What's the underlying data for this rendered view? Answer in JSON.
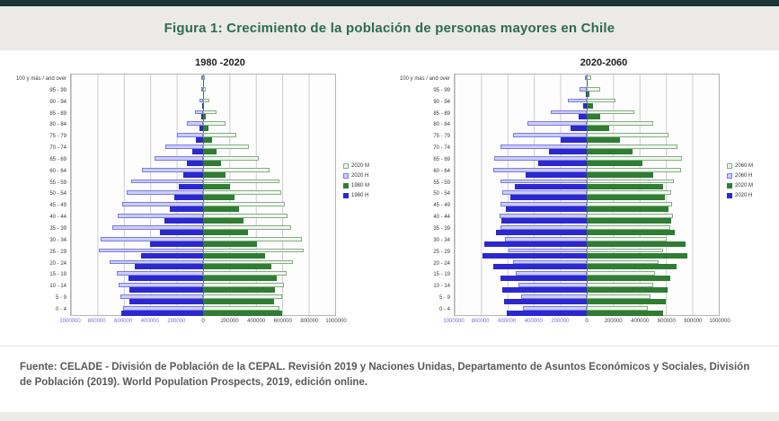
{
  "page": {
    "title": "Figura 1: Crecimiento de la población de personas mayores en Chile",
    "source": "Fuente: CELADE - División de Población de la CEPAL. Revisión 2019 y Naciones Unidas, Departamento de Asuntos Económicos y Sociales, División de Población (2019). World Population Prospects, 2019, edición online."
  },
  "colors": {
    "title_green": "#2e6b50",
    "top_strip": "#1d3537",
    "solid_blue": "#2b28cf",
    "solid_green": "#2e7d32",
    "outline_lavender_fill": "#ccccff",
    "outline_lavender_border": "#7b7bdf",
    "outline_lightgreen_fill": "#f0f6ee",
    "outline_lightgreen_border": "#85ad85",
    "negative_tick_color": "#6f6fd8",
    "background": "#efeeec"
  },
  "chart_data": [
    {
      "type": "bar",
      "subtype": "population-pyramid",
      "title": "1980 -2020",
      "xlabel": "",
      "ylabel": "",
      "xlim_abs": 1000000,
      "grid": true,
      "legend_position": "right",
      "age_groups": [
        "100 y más / and over",
        "95 - 99",
        "90 - 94",
        "85 - 89",
        "80 - 84",
        "75 - 79",
        "70 - 74",
        "65 - 69",
        "60 - 64",
        "55 - 59",
        "50 - 54",
        "45 - 49",
        "40 - 44",
        "35 - 39",
        "30 - 34",
        "25 - 29",
        "20 - 24",
        "15 - 19",
        "10 - 14",
        "5 - 9",
        "0 - 4"
      ],
      "x_tick_labels": [
        "1000000",
        "800000",
        "600000",
        "400000",
        "200000",
        "0",
        "200000",
        "400000",
        "600000",
        "800000",
        "1000000"
      ],
      "legend": [
        {
          "label": "2020 M",
          "style": "outline-lightgreen"
        },
        {
          "label": "2020 H",
          "style": "outline-lavender"
        },
        {
          "label": "1980 M",
          "style": "solid-green"
        },
        {
          "label": "1980 H",
          "style": "solid-blue"
        }
      ],
      "series": [
        {
          "name": "2020 H",
          "side": "left",
          "style": "outline-lavender",
          "values": [
            2000,
            8000,
            25000,
            60000,
            120000,
            195000,
            285000,
            370000,
            460000,
            545000,
            575000,
            610000,
            645000,
            685000,
            775000,
            790000,
            705000,
            655000,
            640000,
            625000,
            605000
          ]
        },
        {
          "name": "2020 M",
          "side": "right",
          "style": "outline-lightgreen",
          "values": [
            6000,
            18000,
            50000,
            100000,
            170000,
            255000,
            345000,
            425000,
            505000,
            575000,
            595000,
            620000,
            640000,
            665000,
            745000,
            760000,
            680000,
            630000,
            615000,
            600000,
            580000
          ]
        },
        {
          "name": "1980 H",
          "side": "left",
          "style": "solid-blue",
          "values": [
            1000,
            2000,
            5000,
            12000,
            30000,
            55000,
            85000,
            120000,
            150000,
            185000,
            220000,
            255000,
            295000,
            330000,
            400000,
            470000,
            520000,
            565000,
            560000,
            555000,
            620000
          ]
        },
        {
          "name": "1980 M",
          "side": "right",
          "style": "solid-green",
          "values": [
            1000,
            3000,
            8000,
            18000,
            40000,
            70000,
            100000,
            135000,
            170000,
            205000,
            240000,
            270000,
            305000,
            340000,
            405000,
            470000,
            515000,
            555000,
            545000,
            540000,
            600000
          ]
        }
      ]
    },
    {
      "type": "bar",
      "subtype": "population-pyramid",
      "title": "2020-2060",
      "xlabel": "",
      "ylabel": "",
      "xlim_abs": 1000000,
      "grid": true,
      "legend_position": "right",
      "age_groups": [
        "100 y más / and over",
        "95 - 99",
        "90 - 94",
        "85 - 89",
        "80 - 84",
        "75 - 79",
        "70 - 74",
        "65 - 69",
        "60 - 64",
        "55 - 59",
        "50 - 54",
        "45 - 49",
        "40 - 44",
        "35 - 39",
        "30 - 34",
        "25 - 29",
        "20 - 24",
        "15 - 19",
        "10 - 14",
        "5 - 9",
        "0 - 4"
      ],
      "x_tick_labels": [
        "1000000",
        "800000",
        "600000",
        "400000",
        "200000",
        "0",
        "200000",
        "400000",
        "600000",
        "800000",
        "1000000"
      ],
      "legend": [
        {
          "label": "2060 M",
          "style": "outline-lightgreen"
        },
        {
          "label": "2060 H",
          "style": "outline-lavender"
        },
        {
          "label": "2020 M",
          "style": "solid-green"
        },
        {
          "label": "2020 H",
          "style": "solid-blue"
        }
      ],
      "series": [
        {
          "name": "2060 H",
          "side": "left",
          "style": "outline-lavender",
          "values": [
            15000,
            55000,
            145000,
            275000,
            450000,
            560000,
            650000,
            700000,
            705000,
            655000,
            640000,
            650000,
            660000,
            650000,
            620000,
            590000,
            560000,
            540000,
            520000,
            500000,
            480000
          ]
        },
        {
          "name": "2060 M",
          "side": "right",
          "style": "outline-lightgreen",
          "values": [
            35000,
            100000,
            220000,
            360000,
            500000,
            620000,
            690000,
            720000,
            715000,
            660000,
            640000,
            645000,
            650000,
            635000,
            605000,
            575000,
            545000,
            520000,
            500000,
            480000,
            460000
          ]
        },
        {
          "name": "2020 H",
          "side": "left",
          "style": "solid-blue",
          "values": [
            2000,
            8000,
            25000,
            60000,
            120000,
            195000,
            285000,
            370000,
            460000,
            545000,
            575000,
            610000,
            645000,
            685000,
            775000,
            790000,
            705000,
            655000,
            640000,
            625000,
            605000
          ]
        },
        {
          "name": "2020 M",
          "side": "right",
          "style": "solid-green",
          "values": [
            6000,
            18000,
            50000,
            100000,
            170000,
            255000,
            345000,
            425000,
            505000,
            575000,
            595000,
            620000,
            640000,
            665000,
            745000,
            760000,
            680000,
            630000,
            615000,
            600000,
            580000
          ]
        }
      ]
    }
  ]
}
